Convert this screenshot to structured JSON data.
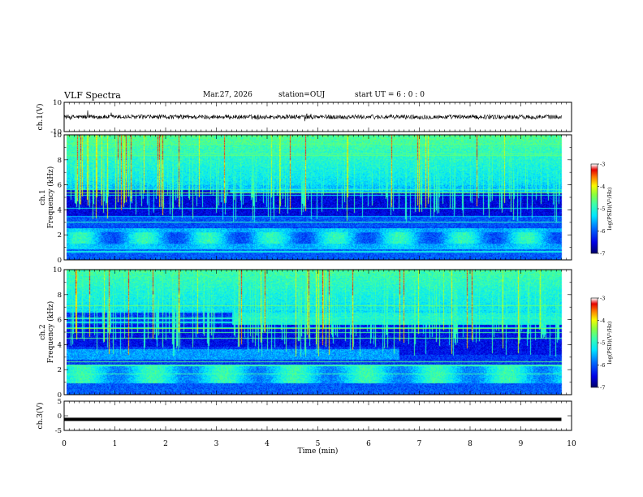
{
  "header": {
    "title": "VLF Spectra",
    "date": "Mar.27, 2026",
    "station": "station=OUJ",
    "start_ut": "start UT =  6 : 0 : 0"
  },
  "colors": {
    "background": "#ffffff",
    "colormap": [
      "#00007f",
      "#0000ff",
      "#0080ff",
      "#00ffff",
      "#80ff80",
      "#00ff00",
      "#ffff00",
      "#ff8000",
      "#ff0000",
      "#ffffff"
    ]
  },
  "chart_data": [
    {
      "id": "ch1-waveform",
      "type": "line",
      "ylabel": "ch.1(V)",
      "ylim": [
        -10,
        10
      ],
      "yticks": [
        "10",
        "-10"
      ],
      "trace_mean": 0,
      "trace_amplitude_approx": 1.5,
      "x_range": [
        0,
        9.8
      ]
    },
    {
      "id": "ch1-spectrogram",
      "type": "heatmap",
      "ylabel_line1": "ch.1",
      "ylabel_line2": "Frequency (kHz)",
      "ylim": [
        0,
        10
      ],
      "yticks": [
        "0",
        "2",
        "4",
        "6",
        "8",
        "10"
      ],
      "x_range": [
        0,
        9.8
      ],
      "colorbar": {
        "label": "log(PSD)(V²/Hz)",
        "range": [
          -7,
          -3
        ],
        "ticks": [
          "-3",
          "-4",
          "-5",
          "-6",
          "-7"
        ]
      },
      "features": {
        "low_band_khz": [
          1.0,
          2.5
        ],
        "quiet_band_khz_before_3min": [
          2.6,
          5.6
        ],
        "quiet_band_khz_after_3min": [
          2.6,
          5.4
        ],
        "upper_edge_change_min": 3.25
      }
    },
    {
      "id": "ch2-spectrogram",
      "type": "heatmap",
      "ylabel_line1": "ch.2",
      "ylabel_line2": "Frequency (kHz)",
      "ylim": [
        0,
        10
      ],
      "yticks": [
        "0",
        "2",
        "4",
        "6",
        "8",
        "10"
      ],
      "x_range": [
        0,
        9.8
      ],
      "colorbar": {
        "label": "log(PSD)(V²/Hz)",
        "range": [
          -7,
          -3
        ],
        "ticks": [
          "-3",
          "-4",
          "-5",
          "-6",
          "-7"
        ]
      },
      "features": {
        "low_band_khz": [
          1.0,
          2.3
        ],
        "quiet_band_khz": [
          3.8,
          5.6
        ],
        "band_6khz_start_min": 3.3,
        "band_3khz_end_min": 6.6
      }
    },
    {
      "id": "ch3-waveform",
      "type": "line",
      "ylabel": "ch.3(V)",
      "ylim": [
        -5,
        5
      ],
      "yticks": [
        "5",
        "0",
        "-5"
      ],
      "trace_value": -1.2,
      "x_range": [
        0,
        9.8
      ]
    }
  ],
  "xaxis": {
    "label": "Time (min)",
    "range": [
      0,
      10
    ],
    "ticks": [
      "0",
      "1",
      "2",
      "3",
      "4",
      "5",
      "6",
      "7",
      "8",
      "9",
      "10"
    ]
  }
}
